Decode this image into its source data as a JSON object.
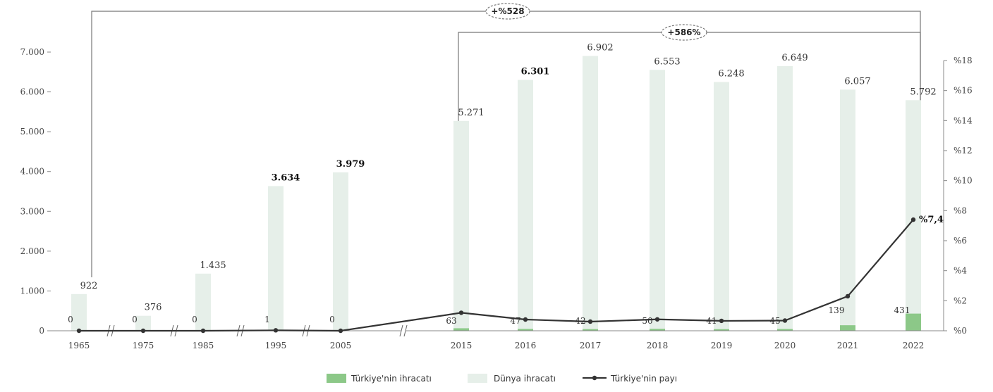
{
  "chart_data": {
    "type": "bar",
    "categories": [
      "1965",
      "1975",
      "1985",
      "1995",
      "2005",
      "2015",
      "2016",
      "2017",
      "2018",
      "2019",
      "2020",
      "2021",
      "2022"
    ],
    "series": [
      {
        "name": "Türkiye'nin ihracatı",
        "values": [
          0,
          0,
          0,
          1,
          0,
          63,
          47,
          42,
          50,
          41,
          45,
          139,
          431
        ],
        "labels": [
          "0",
          "0",
          "0",
          "1",
          "0",
          "63",
          "47",
          "42",
          "50",
          "41",
          "45",
          "139",
          "431"
        ],
        "color": "#8cc888"
      },
      {
        "name": "Dünya ihracatı",
        "values": [
          922,
          376,
          1435,
          3634,
          3979,
          5271,
          6301,
          6902,
          6553,
          6248,
          6649,
          6057,
          5792
        ],
        "labels": [
          "922",
          "376",
          "1.435",
          "3.634",
          "3.979",
          "5.271",
          "6.301",
          "6.902",
          "6.553",
          "6.248",
          "6.649",
          "6.057",
          "5.792"
        ],
        "bold_labels": [
          "3.634",
          "3.979",
          "6.301"
        ],
        "color": "#e6efe9"
      },
      {
        "name": "Türkiye'nin payı",
        "type": "line",
        "axis": "right",
        "values": [
          0.0,
          0.0,
          0.0,
          0.03,
          0.0,
          1.2,
          0.75,
          0.61,
          0.76,
          0.66,
          0.68,
          2.3,
          7.4
        ],
        "end_label": "%7,4",
        "color": "#333333"
      }
    ],
    "ylim": [
      0,
      7000
    ],
    "y_ticks": [
      0,
      1000,
      2000,
      3000,
      4000,
      5000,
      6000,
      7000
    ],
    "y_tick_labels": [
      "0",
      "1.000",
      "2.000",
      "3.000",
      "4.000",
      "5.000",
      "6.000",
      "7.000"
    ],
    "y2lim": [
      0,
      18
    ],
    "y2_ticks": [
      0,
      2,
      4,
      6,
      8,
      10,
      12,
      14,
      16,
      18
    ],
    "y2_tick_labels": [
      "%0",
      "%2",
      "%4",
      "%6",
      "%8",
      "%10",
      "%12",
      "%14",
      "%16",
      "%18"
    ],
    "axis_breaks_after": [
      "1965",
      "1975",
      "1985",
      "1995",
      "2005"
    ],
    "annotations": [
      {
        "text": "+%528",
        "from": "1965",
        "to": "2022"
      },
      {
        "text": "+586%",
        "from": "2015",
        "to": "2022"
      }
    ],
    "legend": {
      "placement": "bottom",
      "entries": [
        "Türkiye'nin ihracatı",
        "Dünya ihracatı",
        "Türkiye'nin payı"
      ]
    },
    "grid": false
  }
}
